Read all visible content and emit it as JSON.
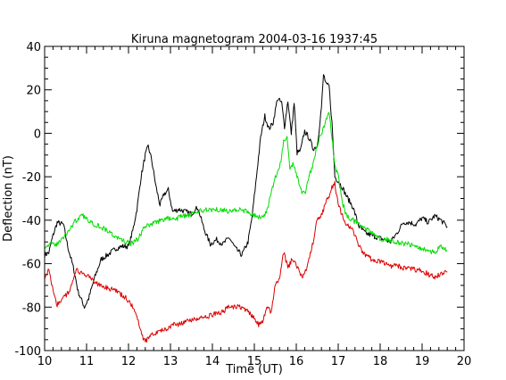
{
  "chart_data": {
    "type": "line",
    "title": "Kiruna magnetogram 2004-03-16 1937:45",
    "xlabel": "Time (UT)",
    "ylabel": "Deflection (nT)",
    "xlim": [
      10,
      20
    ],
    "ylim": [
      -100,
      40
    ],
    "x_ticks": [
      "10",
      "11",
      "12",
      "13",
      "14",
      "15",
      "16",
      "17",
      "18",
      "19",
      "20"
    ],
    "y_ticks": [
      "40",
      "20",
      "0",
      "-20",
      "-40",
      "-60",
      "-80",
      "-100"
    ],
    "grid": false,
    "legend": "none",
    "series": [
      {
        "color": "#000000",
        "x": [
          10.0,
          10.1,
          10.2,
          10.3,
          10.45,
          10.55,
          10.7,
          10.8,
          10.95,
          11.05,
          11.2,
          11.35,
          11.5,
          11.7,
          11.85,
          12.0,
          12.1,
          12.2,
          12.3,
          12.4,
          12.47,
          12.55,
          12.65,
          12.75,
          12.85,
          12.95,
          13.05,
          13.2,
          13.35,
          13.5,
          13.65,
          13.8,
          13.95,
          14.1,
          14.25,
          14.4,
          14.55,
          14.7,
          14.85,
          14.95,
          15.05,
          15.15,
          15.25,
          15.35,
          15.45,
          15.55,
          15.65,
          15.72,
          15.8,
          15.88,
          15.95,
          16.02,
          16.1,
          16.2,
          16.3,
          16.4,
          16.5,
          16.6,
          16.65,
          16.72,
          16.78,
          16.85,
          16.92,
          17.0,
          17.1,
          17.2,
          17.35,
          17.5,
          17.65,
          17.8,
          17.95,
          18.1,
          18.25,
          18.4,
          18.55,
          18.7,
          18.85,
          19.0,
          19.15,
          19.3,
          19.45,
          19.6
        ],
        "y": [
          -56,
          -55,
          -47,
          -41,
          -42,
          -52,
          -63,
          -73,
          -80,
          -76,
          -66,
          -58,
          -56,
          -53,
          -52,
          -52,
          -45,
          -35,
          -20,
          -10,
          -6,
          -12,
          -24,
          -33,
          -28,
          -26,
          -36,
          -35,
          -36,
          -37,
          -34,
          -44,
          -51,
          -49,
          -51,
          -48,
          -53,
          -56,
          -50,
          -38,
          -20,
          -2,
          8,
          2,
          5,
          16,
          14,
          3,
          15,
          0,
          14,
          -9,
          -8,
          1,
          -2,
          -7,
          -6,
          12,
          27,
          22,
          22,
          5,
          -20,
          -22,
          -25,
          -29,
          -34,
          -43,
          -46,
          -47,
          -48,
          -49,
          -50,
          -46,
          -41,
          -41,
          -42,
          -39,
          -41,
          -38,
          -40,
          -43
        ]
      },
      {
        "color": "#00dd00",
        "x": [
          10.0,
          10.15,
          10.3,
          10.45,
          10.6,
          10.75,
          10.9,
          11.05,
          11.2,
          11.35,
          11.5,
          11.65,
          11.8,
          11.95,
          12.05,
          12.15,
          12.25,
          12.35,
          12.5,
          12.65,
          12.8,
          12.95,
          13.1,
          13.25,
          13.4,
          13.55,
          13.7,
          13.85,
          14.0,
          14.2,
          14.4,
          14.6,
          14.8,
          14.95,
          15.1,
          15.2,
          15.3,
          15.4,
          15.5,
          15.6,
          15.7,
          15.78,
          15.85,
          15.92,
          16.0,
          16.1,
          16.2,
          16.3,
          16.4,
          16.5,
          16.6,
          16.7,
          16.78,
          16.85,
          16.92,
          17.0,
          17.1,
          17.2,
          17.35,
          17.5,
          17.65,
          17.8,
          17.95,
          18.1,
          18.25,
          18.4,
          18.55,
          18.7,
          18.85,
          19.0,
          19.15,
          19.3,
          19.45,
          19.6
        ],
        "y": [
          -52,
          -51,
          -51,
          -48,
          -44,
          -40,
          -38,
          -40,
          -42,
          -43,
          -45,
          -47,
          -49,
          -50,
          -51,
          -50,
          -48,
          -44,
          -42,
          -41,
          -40,
          -39,
          -40,
          -38,
          -38,
          -37,
          -36,
          -35,
          -35,
          -35,
          -36,
          -35,
          -36,
          -37,
          -39,
          -38,
          -36,
          -28,
          -20,
          -16,
          -4,
          -2,
          -16,
          -14,
          -18,
          -26,
          -28,
          -20,
          -14,
          -5,
          0,
          5,
          10,
          -2,
          -15,
          -20,
          -32,
          -38,
          -40,
          -42,
          -44,
          -46,
          -48,
          -49,
          -49,
          -50,
          -51,
          -51,
          -52,
          -53,
          -54,
          -55,
          -52,
          -54
        ]
      },
      {
        "color": "#dd0000",
        "x": [
          10.0,
          10.1,
          10.2,
          10.3,
          10.45,
          10.6,
          10.75,
          10.9,
          11.05,
          11.2,
          11.35,
          11.5,
          11.65,
          11.8,
          11.95,
          12.1,
          12.2,
          12.3,
          12.4,
          12.5,
          12.6,
          12.75,
          12.9,
          13.05,
          13.2,
          13.35,
          13.5,
          13.65,
          13.8,
          13.95,
          14.1,
          14.25,
          14.4,
          14.55,
          14.7,
          14.85,
          15.0,
          15.1,
          15.2,
          15.3,
          15.4,
          15.5,
          15.6,
          15.7,
          15.8,
          15.9,
          16.0,
          16.1,
          16.2,
          16.3,
          16.4,
          16.5,
          16.6,
          16.7,
          16.8,
          16.85,
          16.92,
          17.0,
          17.1,
          17.2,
          17.35,
          17.5,
          17.65,
          17.8,
          17.95,
          18.1,
          18.25,
          18.4,
          18.55,
          18.7,
          18.85,
          19.0,
          19.15,
          19.3,
          19.45,
          19.6
        ],
        "y": [
          -66,
          -63,
          -72,
          -79,
          -76,
          -72,
          -63,
          -65,
          -66,
          -69,
          -70,
          -71,
          -72,
          -74,
          -76,
          -80,
          -84,
          -92,
          -96,
          -94,
          -92,
          -91,
          -90,
          -88,
          -88,
          -87,
          -86,
          -85,
          -85,
          -84,
          -83,
          -82,
          -80,
          -80,
          -80,
          -82,
          -85,
          -88,
          -86,
          -80,
          -82,
          -70,
          -66,
          -55,
          -62,
          -58,
          -60,
          -66,
          -65,
          -58,
          -50,
          -40,
          -38,
          -32,
          -28,
          -25,
          -23,
          -33,
          -38,
          -42,
          -45,
          -52,
          -56,
          -58,
          -59,
          -60,
          -61,
          -61,
          -62,
          -62,
          -63,
          -63,
          -65,
          -66,
          -65,
          -64
        ]
      }
    ]
  }
}
